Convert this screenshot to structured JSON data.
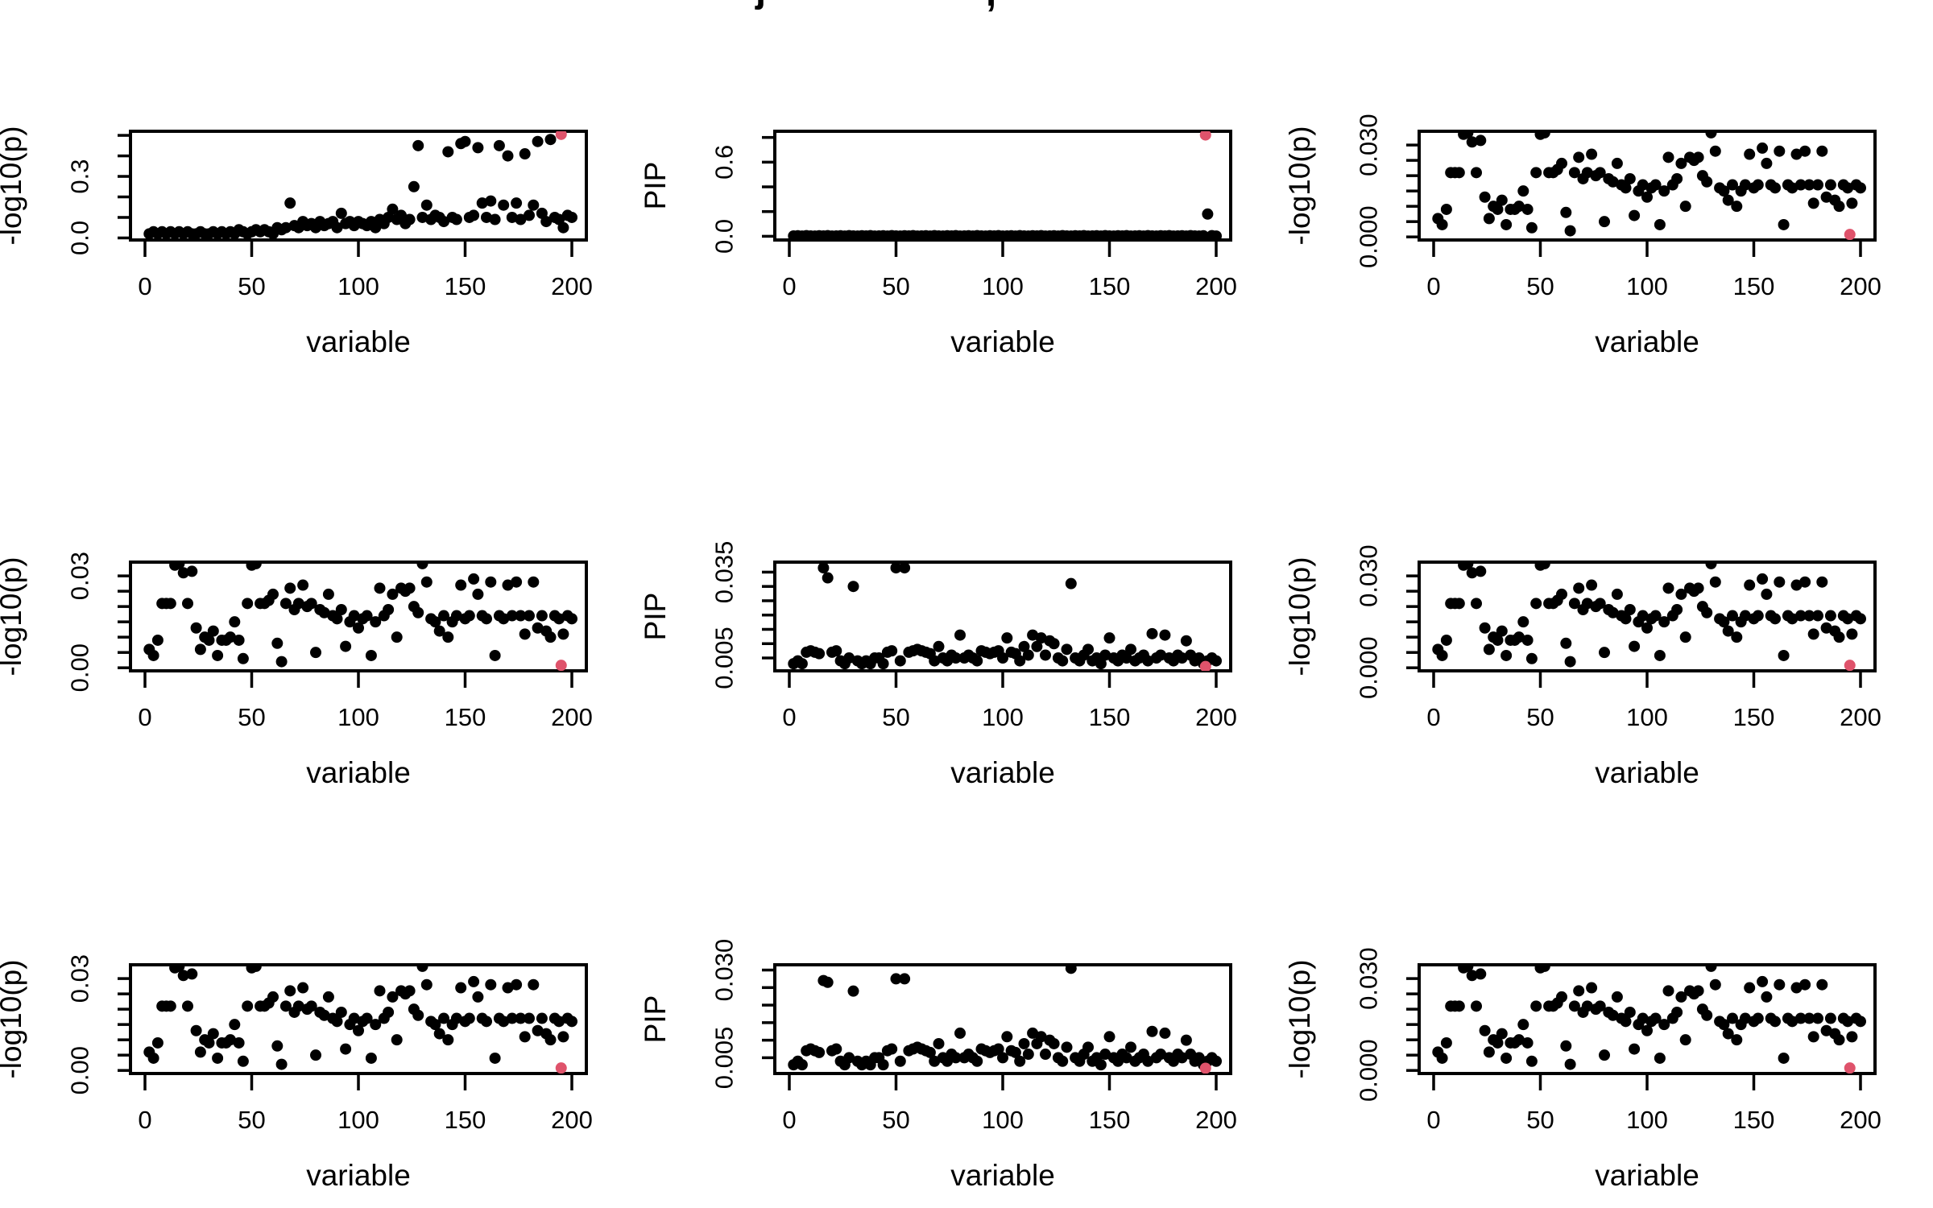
{
  "title_fragments": {
    "left": "j",
    "right": ","
  },
  "colors": {
    "point": "#000000",
    "highlight": "#DF536B",
    "background": "#ffffff",
    "axis": "#000000"
  },
  "chart_data": {
    "type": "scatter",
    "layout": "3x3-grid",
    "x_start": 2,
    "x_step": 2,
    "xlim": [
      0,
      200
    ],
    "xticks": [
      0,
      50,
      100,
      150,
      200
    ],
    "xtick_labels": [
      "0",
      "50",
      "100",
      "150",
      "200"
    ],
    "grid": "off",
    "legend": "none",
    "series": {
      "assoc_logp": [
        0.02,
        0.03,
        0.02,
        0.03,
        0.02,
        0.03,
        0.02,
        0.03,
        0.02,
        0.03,
        0.02,
        0.02,
        0.03,
        0.02,
        0.02,
        0.03,
        0.02,
        0.03,
        0.02,
        0.03,
        0.02,
        0.04,
        0.03,
        0.02,
        0.03,
        0.04,
        0.03,
        0.04,
        0.03,
        0.02,
        0.05,
        0.04,
        0.05,
        0.17,
        0.06,
        0.05,
        0.08,
        0.06,
        0.07,
        0.05,
        0.08,
        0.06,
        0.07,
        0.08,
        0.05,
        0.12,
        0.07,
        0.08,
        0.06,
        0.08,
        0.07,
        0.06,
        0.08,
        0.05,
        0.09,
        0.07,
        0.1,
        0.14,
        0.09,
        0.11,
        0.07,
        0.09,
        0.25,
        0.45,
        0.1,
        0.16,
        0.09,
        0.11,
        0.1,
        0.08,
        0.42,
        0.1,
        0.09,
        0.46,
        0.47,
        0.1,
        0.11,
        0.44,
        0.17,
        0.1,
        0.18,
        0.09,
        0.45,
        0.16,
        0.4,
        0.1,
        0.17,
        0.09,
        0.41,
        0.11,
        0.16,
        0.47,
        0.12,
        0.08,
        0.48,
        0.1,
        0.09,
        0.05,
        0.11,
        0.1
      ],
      "flat_pip": [
        0.003,
        0.004,
        0.002,
        0.005,
        0.003,
        0.002,
        0.004,
        0.003,
        0.005,
        0.002,
        0.003,
        0.004,
        0.002,
        0.005,
        0.003,
        0.002,
        0.004,
        0.003,
        0.005,
        0.002,
        0.003,
        0.004,
        0.002,
        0.005,
        0.003,
        0.002,
        0.004,
        0.003,
        0.005,
        0.002,
        0.003,
        0.004,
        0.002,
        0.005,
        0.003,
        0.002,
        0.004,
        0.003,
        0.005,
        0.002,
        0.003,
        0.004,
        0.002,
        0.005,
        0.003,
        0.002,
        0.004,
        0.003,
        0.005,
        0.002,
        0.003,
        0.004,
        0.002,
        0.005,
        0.003,
        0.002,
        0.004,
        0.003,
        0.005,
        0.002,
        0.003,
        0.004,
        0.002,
        0.005,
        0.003,
        0.002,
        0.004,
        0.003,
        0.005,
        0.002,
        0.003,
        0.004,
        0.002,
        0.005,
        0.003,
        0.002,
        0.004,
        0.003,
        0.005,
        0.002,
        0.003,
        0.004,
        0.002,
        0.005,
        0.003,
        0.002,
        0.004,
        0.003,
        0.005,
        0.002,
        0.003,
        0.004,
        0.002,
        0.005,
        0.003,
        0.002,
        0.004,
        0.18,
        0.005,
        0.002
      ],
      "null_logp": [
        0.006,
        0.004,
        0.009,
        0.021,
        0.021,
        0.021,
        0.0335,
        0.034,
        0.031,
        0.021,
        0.0315,
        0.013,
        0.006,
        0.01,
        0.009,
        0.012,
        0.004,
        0.009,
        0.009,
        0.01,
        0.015,
        0.009,
        0.003,
        0.021,
        0.0335,
        0.034,
        0.021,
        0.021,
        0.022,
        0.024,
        0.008,
        0.002,
        0.021,
        0.026,
        0.019,
        0.021,
        0.027,
        0.02,
        0.021,
        0.005,
        0.019,
        0.018,
        0.024,
        0.017,
        0.016,
        0.019,
        0.007,
        0.015,
        0.017,
        0.013,
        0.016,
        0.017,
        0.004,
        0.015,
        0.026,
        0.017,
        0.019,
        0.024,
        0.01,
        0.026,
        0.025,
        0.026,
        0.02,
        0.018,
        0.034,
        0.028,
        0.016,
        0.015,
        0.012,
        0.017,
        0.01,
        0.015,
        0.017,
        0.027,
        0.016,
        0.017,
        0.029,
        0.024,
        0.017,
        0.016,
        0.028,
        0.004,
        0.017,
        0.016,
        0.027,
        0.017,
        0.028,
        0.017,
        0.011,
        0.017,
        0.028,
        0.013,
        0.017,
        0.012,
        0.01,
        0.017,
        0.016,
        0.011,
        0.017,
        0.016
      ],
      "pip_mid": [
        0.003,
        0.004,
        0.003,
        0.007,
        0.0075,
        0.007,
        0.0065,
        0.0365,
        0.033,
        0.007,
        0.0075,
        0.004,
        0.003,
        0.005,
        0.03,
        0.004,
        0.003,
        0.004,
        0.003,
        0.005,
        0.005,
        0.003,
        0.007,
        0.0075,
        0.0365,
        0.004,
        0.0365,
        0.007,
        0.0075,
        0.008,
        0.0075,
        0.007,
        0.0065,
        0.004,
        0.009,
        0.005,
        0.004,
        0.006,
        0.005,
        0.013,
        0.005,
        0.006,
        0.005,
        0.004,
        0.0075,
        0.007,
        0.0065,
        0.007,
        0.0075,
        0.005,
        0.012,
        0.007,
        0.0065,
        0.004,
        0.009,
        0.006,
        0.013,
        0.009,
        0.012,
        0.006,
        0.011,
        0.01,
        0.005,
        0.004,
        0.008,
        0.031,
        0.005,
        0.004,
        0.006,
        0.008,
        0.004,
        0.005,
        0.003,
        0.006,
        0.012,
        0.005,
        0.004,
        0.006,
        0.005,
        0.008,
        0.004,
        0.005,
        0.006,
        0.004,
        0.0135,
        0.005,
        0.006,
        0.013,
        0.005,
        0.004,
        0.006,
        0.005,
        0.011,
        0.006,
        0.004,
        0.005,
        0.003,
        0.004,
        0.005,
        0.004
      ],
      "pip_low": [
        0.003,
        0.004,
        0.003,
        0.007,
        0.0075,
        0.007,
        0.0065,
        0.027,
        0.0265,
        0.007,
        0.0075,
        0.004,
        0.003,
        0.005,
        0.024,
        0.004,
        0.003,
        0.004,
        0.003,
        0.005,
        0.005,
        0.003,
        0.007,
        0.0075,
        0.0275,
        0.004,
        0.0275,
        0.007,
        0.0075,
        0.008,
        0.0075,
        0.007,
        0.0065,
        0.004,
        0.009,
        0.005,
        0.004,
        0.006,
        0.005,
        0.012,
        0.005,
        0.006,
        0.005,
        0.004,
        0.0075,
        0.007,
        0.0065,
        0.007,
        0.0075,
        0.005,
        0.011,
        0.007,
        0.0065,
        0.004,
        0.009,
        0.006,
        0.012,
        0.009,
        0.011,
        0.006,
        0.01,
        0.009,
        0.005,
        0.004,
        0.008,
        0.0305,
        0.005,
        0.004,
        0.006,
        0.008,
        0.004,
        0.005,
        0.003,
        0.006,
        0.011,
        0.005,
        0.004,
        0.006,
        0.005,
        0.008,
        0.004,
        0.005,
        0.006,
        0.004,
        0.0125,
        0.005,
        0.006,
        0.012,
        0.005,
        0.004,
        0.006,
        0.005,
        0.01,
        0.006,
        0.004,
        0.005,
        0.003,
        0.004,
        0.005,
        0.004
      ]
    },
    "panels": [
      {
        "id": "top-left",
        "ylabel": "-log10(p)",
        "xlabel": "variable",
        "series": "assoc_logp",
        "ylim": [
          -0.01,
          0.52
        ],
        "yticks": [
          0,
          0.1,
          0.2,
          0.3,
          0.4,
          0.5
        ],
        "ytick_labels": [
          "0.0",
          "",
          "",
          "0.3",
          "",
          ""
        ],
        "highlight": {
          "x": 195,
          "y": 0.505
        }
      },
      {
        "id": "top-center",
        "ylabel": "PIP",
        "xlabel": "variable",
        "series": "flat_pip",
        "ylim": [
          -0.03,
          0.85
        ],
        "yticks": [
          0,
          0.2,
          0.4,
          0.6,
          0.8
        ],
        "ytick_labels": [
          "0.0",
          "",
          "",
          "0.6",
          ""
        ],
        "highlight": {
          "x": 195,
          "y": 0.82
        }
      },
      {
        "id": "top-right",
        "ylabel": "-log10(p)",
        "xlabel": "variable",
        "series": "null_logp",
        "ylim": [
          -0.001,
          0.0345
        ],
        "yticks": [
          0,
          0.005,
          0.01,
          0.015,
          0.02,
          0.025,
          0.03
        ],
        "ytick_labels": [
          "0.000",
          "",
          "",
          "",
          "",
          "",
          "0.030"
        ],
        "highlight": {
          "x": 195,
          "y": 0.0008
        }
      },
      {
        "id": "mid-left",
        "ylabel": "-log10(p)",
        "xlabel": "variable",
        "series": "null_logp",
        "ylim": [
          -0.001,
          0.0345
        ],
        "yticks": [
          0,
          0.005,
          0.01,
          0.015,
          0.02,
          0.025,
          0.03
        ],
        "ytick_labels": [
          "0.00",
          "",
          "",
          "",
          "",
          "",
          "0.03"
        ],
        "highlight": {
          "x": 195,
          "y": 0.0008
        }
      },
      {
        "id": "mid-center",
        "ylabel": "PIP",
        "xlabel": "variable",
        "series": "pip_mid",
        "ylim": [
          0.0005,
          0.0385
        ],
        "yticks": [
          0.005,
          0.01,
          0.015,
          0.02,
          0.025,
          0.03,
          0.035
        ],
        "ytick_labels": [
          "0.005",
          "",
          "",
          "",
          "",
          "",
          "0.035"
        ],
        "highlight": {
          "x": 195,
          "y": 0.002
        }
      },
      {
        "id": "mid-right",
        "ylabel": "-log10(p)",
        "xlabel": "variable",
        "series": "null_logp",
        "ylim": [
          -0.001,
          0.0345
        ],
        "yticks": [
          0,
          0.005,
          0.01,
          0.015,
          0.02,
          0.025,
          0.03
        ],
        "ytick_labels": [
          "0.000",
          "",
          "",
          "",
          "",
          "",
          "0.030"
        ],
        "highlight": {
          "x": 195,
          "y": 0.0008
        }
      },
      {
        "id": "bottom-left",
        "ylabel": "-log10(p)",
        "xlabel": "variable",
        "series": "null_logp",
        "ylim": [
          -0.001,
          0.0345
        ],
        "yticks": [
          0,
          0.005,
          0.01,
          0.015,
          0.02,
          0.025,
          0.03
        ],
        "ytick_labels": [
          "0.00",
          "",
          "",
          "",
          "",
          "",
          "0.03"
        ],
        "highlight": {
          "x": 195,
          "y": 0.0008
        }
      },
      {
        "id": "bottom-center",
        "ylabel": "PIP",
        "xlabel": "variable",
        "series": "pip_low",
        "ylim": [
          0.0005,
          0.0315
        ],
        "yticks": [
          0.005,
          0.01,
          0.015,
          0.02,
          0.025,
          0.03
        ],
        "ytick_labels": [
          "0.005",
          "",
          "",
          "",
          "",
          "0.030"
        ],
        "highlight": {
          "x": 195,
          "y": 0.002
        }
      },
      {
        "id": "bottom-right",
        "ylabel": "-log10(p)",
        "xlabel": "variable",
        "series": "null_logp",
        "ylim": [
          -0.001,
          0.0345
        ],
        "yticks": [
          0,
          0.005,
          0.01,
          0.015,
          0.02,
          0.025,
          0.03
        ],
        "ytick_labels": [
          "0.000",
          "",
          "",
          "",
          "",
          "",
          "0.030"
        ],
        "highlight": {
          "x": 195,
          "y": 0.0008
        }
      }
    ]
  }
}
